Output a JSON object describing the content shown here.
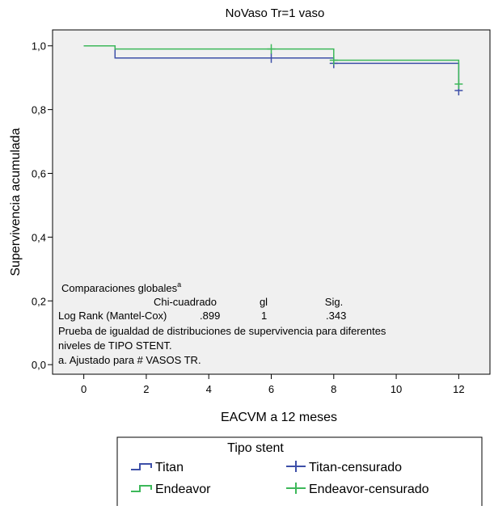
{
  "chart_data": {
    "type": "line",
    "subtype": "kaplan-meier survival",
    "title": "NoVaso Tr=1 vaso",
    "xlabel": "EACVM a 12 meses",
    "ylabel": "Supervivencia acumulada",
    "xlim": [
      -1,
      13
    ],
    "ylim": [
      -0.03,
      1.05
    ],
    "xticks": [
      0,
      2,
      4,
      6,
      8,
      10,
      12
    ],
    "xtick_labels": [
      "0",
      "2",
      "4",
      "6",
      "8",
      "10",
      "12"
    ],
    "yticks": [
      0.0,
      0.2,
      0.4,
      0.6,
      0.8,
      1.0
    ],
    "ytick_labels": [
      "0,0",
      "0,2",
      "0,4",
      "0,6",
      "0,8",
      "1,0"
    ],
    "grid": false,
    "legend_placement": "bottom",
    "legend_title": "Tipo stent",
    "series": [
      {
        "name": "Titan",
        "color": "#3d4fa8",
        "steps": [
          [
            0,
            1.0
          ],
          [
            1,
            0.962
          ],
          [
            6,
            0.962
          ],
          [
            8,
            0.945
          ],
          [
            12,
            0.86
          ]
        ],
        "x_end": 12
      },
      {
        "name": "Endeavor",
        "color": "#3db85a",
        "steps": [
          [
            0,
            1.0
          ],
          [
            1,
            0.99
          ],
          [
            8,
            0.955
          ],
          [
            12,
            0.88
          ]
        ],
        "x_end": 12
      }
    ],
    "censored": [
      {
        "name": "Titan-censurado",
        "color": "#3d4fa8",
        "points": [
          [
            6,
            0.962
          ],
          [
            8,
            0.945
          ],
          [
            12,
            0.86
          ]
        ]
      },
      {
        "name": "Endeavor-censurado",
        "color": "#3db85a",
        "points": [
          [
            6,
            0.99
          ],
          [
            8,
            0.955
          ],
          [
            12,
            0.88
          ]
        ]
      }
    ],
    "annotation": {
      "heading": "Comparaciones globales",
      "heading_sup": "a",
      "col_headers": [
        "Chi-cuadrado",
        "gl",
        "Sig."
      ],
      "row_label": "Log Rank (Mantel-Cox)",
      "row_values": [
        ".899",
        "1",
        ".343"
      ],
      "note_line1": "Prueba de igualdad de distribuciones de supervivencia para diferentes",
      "note_line2": "niveles de TIPO STENT.",
      "footnote": "a. Ajustado para # VASOS TR."
    }
  },
  "legend": {
    "title": "Tipo stent",
    "items": [
      {
        "label": "Titan",
        "kind": "line",
        "color": "#3d4fa8"
      },
      {
        "label": "Titan-censurado",
        "kind": "cross",
        "color": "#3d4fa8"
      },
      {
        "label": "Endeavor",
        "kind": "line",
        "color": "#3db85a"
      },
      {
        "label": "Endeavor-censurado",
        "kind": "cross",
        "color": "#3db85a"
      }
    ]
  }
}
